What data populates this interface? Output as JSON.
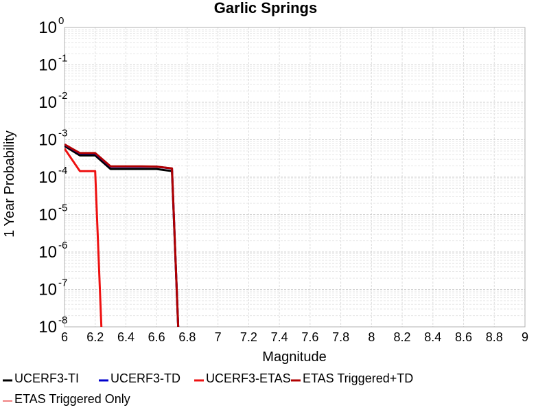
{
  "chart_data": {
    "type": "line",
    "title": "Garlic Springs",
    "xlabel": "Magnitude",
    "ylabel": "1 Year Probability",
    "xlim": [
      6,
      9
    ],
    "ylim": [
      1e-08,
      1
    ],
    "yscale": "log",
    "grid": true,
    "legend_position": "bottom",
    "x_ticks": [
      "6",
      "6.2",
      "6.4",
      "6.6",
      "6.8",
      "7",
      "7.2",
      "7.4",
      "7.6",
      "7.8",
      "8",
      "8.2",
      "8.4",
      "8.6",
      "8.8",
      "9"
    ],
    "y_ticks": [
      {
        "base": "10",
        "exp": "0",
        "value": 1
      },
      {
        "base": "10",
        "exp": "-1",
        "value": 0.1
      },
      {
        "base": "10",
        "exp": "-2",
        "value": 0.01
      },
      {
        "base": "10",
        "exp": "-3",
        "value": 0.001
      },
      {
        "base": "10",
        "exp": "-4",
        "value": 0.0001
      },
      {
        "base": "10",
        "exp": "-5",
        "value": 1e-05
      },
      {
        "base": "10",
        "exp": "-6",
        "value": 1e-06
      },
      {
        "base": "10",
        "exp": "-7",
        "value": 1e-07
      },
      {
        "base": "10",
        "exp": "-8",
        "value": 1e-08
      }
    ],
    "series": [
      {
        "name": "UCERF3-TI",
        "color": "#000000",
        "x": [
          6.0,
          6.1,
          6.2,
          6.3,
          6.4,
          6.5,
          6.6,
          6.7,
          6.75
        ],
        "y": [
          0.00068,
          0.00038,
          0.00038,
          0.000165,
          0.000165,
          0.000165,
          0.000165,
          0.000145,
          1e-09
        ]
      },
      {
        "name": "UCERF3-TD",
        "color": "#0000cc",
        "x": [
          6.0,
          6.1,
          6.2,
          6.3,
          6.4,
          6.5,
          6.6,
          6.7,
          6.75
        ],
        "y": [
          0.00074,
          0.00043,
          0.00043,
          0.00019,
          0.00019,
          0.00019,
          0.00019,
          0.00017,
          1e-09
        ]
      },
      {
        "name": "UCERF3-ETAS",
        "color": "#ee1111",
        "x": [
          6.0,
          6.1,
          6.2,
          6.25
        ],
        "y": [
          0.00058,
          0.000145,
          0.000145,
          1e-09
        ]
      },
      {
        "name": "ETAS Triggered+TD",
        "color": "#b00000",
        "x": [
          6.0,
          6.1,
          6.2,
          6.3,
          6.4,
          6.5,
          6.6,
          6.7,
          6.75
        ],
        "y": [
          0.00075,
          0.00044,
          0.00044,
          0.000195,
          0.000195,
          0.000195,
          0.000192,
          0.000172,
          1e-09
        ]
      },
      {
        "name": "ETAS Triggered Only",
        "color": "#f08080",
        "x": [],
        "y": []
      }
    ]
  }
}
